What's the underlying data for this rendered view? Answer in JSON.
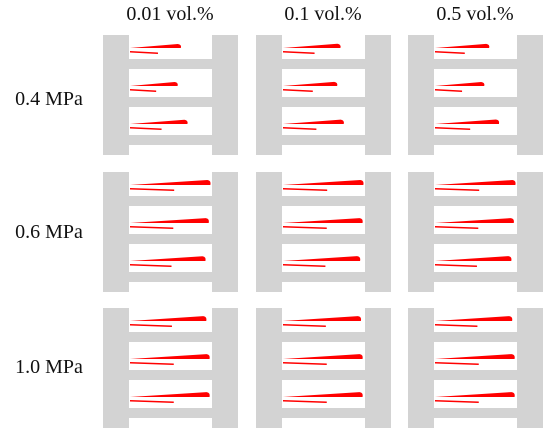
{
  "columns": [
    "0.01 vol.%",
    "0.1 vol.%",
    "0.5 vol.%"
  ],
  "rows": [
    "0.4 MPa",
    "0.6 MPa",
    "1.0 MPa"
  ],
  "colors": {
    "channel_wall": "#d3d3d3",
    "fluid": "#ff0000",
    "background": "#ffffff"
  }
}
